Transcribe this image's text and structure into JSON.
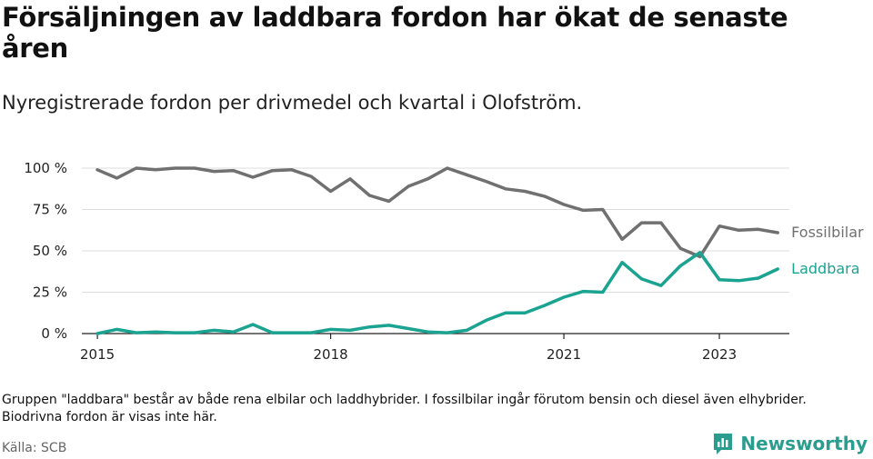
{
  "title": "Försäljningen av laddbara fordon har ökat de senaste åren",
  "subtitle": "Nyregistrerade fordon per drivmedel och kvartal i Olofström.",
  "note": "Gruppen \"laddbara\" består av både rena elbilar och laddhybrider. I fossilbilar ingår förutom bensin och diesel även elhybrider. Biodrivna fordon är visas inte här.",
  "source": "Källa: SCB",
  "brand": "Newsworthy",
  "colors": {
    "fossil": "#707070",
    "laddbara": "#1aa391",
    "grid": "#dddddd",
    "brand": "#2a9d8f"
  },
  "chart_data": {
    "type": "line",
    "title": "Försäljningen av laddbara fordon har ökat de senaste åren",
    "xlabel": "",
    "ylabel": "",
    "x_unit": "year (quarterly points)",
    "xlim": [
      2014.8,
      2023.9
    ],
    "ylim": [
      0,
      100
    ],
    "x_ticks": [
      {
        "value": 2015,
        "label": "2015"
      },
      {
        "value": 2018,
        "label": "2018"
      },
      {
        "value": 2021,
        "label": "2021"
      },
      {
        "value": 2023,
        "label": "2023"
      }
    ],
    "y_ticks": [
      {
        "value": 0,
        "label": "0 %"
      },
      {
        "value": 25,
        "label": "25 %"
      },
      {
        "value": 50,
        "label": "50 %"
      },
      {
        "value": 75,
        "label": "75 %"
      },
      {
        "value": 100,
        "label": "100 %"
      }
    ],
    "x": [
      2015.0,
      2015.25,
      2015.5,
      2015.75,
      2016.0,
      2016.25,
      2016.5,
      2016.75,
      2017.0,
      2017.25,
      2017.5,
      2017.75,
      2018.0,
      2018.25,
      2018.5,
      2018.75,
      2019.0,
      2019.25,
      2019.5,
      2019.75,
      2020.0,
      2020.25,
      2020.5,
      2020.75,
      2021.0,
      2021.25,
      2021.5,
      2021.75,
      2022.0,
      2022.25,
      2022.5,
      2022.75,
      2023.0,
      2023.25,
      2023.5,
      2023.75
    ],
    "series": [
      {
        "name": "Fossilbilar",
        "label": "Fossilbilar",
        "values": [
          99,
          94,
          100,
          99,
          100,
          100,
          98,
          98.5,
          94.5,
          98.5,
          99,
          95,
          86,
          93.5,
          83.5,
          80,
          89,
          93.5,
          100,
          96,
          92,
          87.5,
          86,
          83,
          78,
          74.5,
          75,
          57,
          67,
          67,
          51.5,
          46.5,
          65,
          62.5,
          63,
          61
        ]
      },
      {
        "name": "Laddbara",
        "label": "Laddbara",
        "values": [
          0,
          2.5,
          0.5,
          1,
          0.5,
          0.5,
          2,
          1,
          5.5,
          0.5,
          0.5,
          0.5,
          2.5,
          2,
          4,
          5,
          3,
          1,
          0.5,
          2,
          8,
          12.5,
          12.5,
          17,
          22,
          25.5,
          25,
          43,
          33,
          29,
          41,
          49,
          32.5,
          32,
          33.5,
          39
        ]
      }
    ]
  }
}
